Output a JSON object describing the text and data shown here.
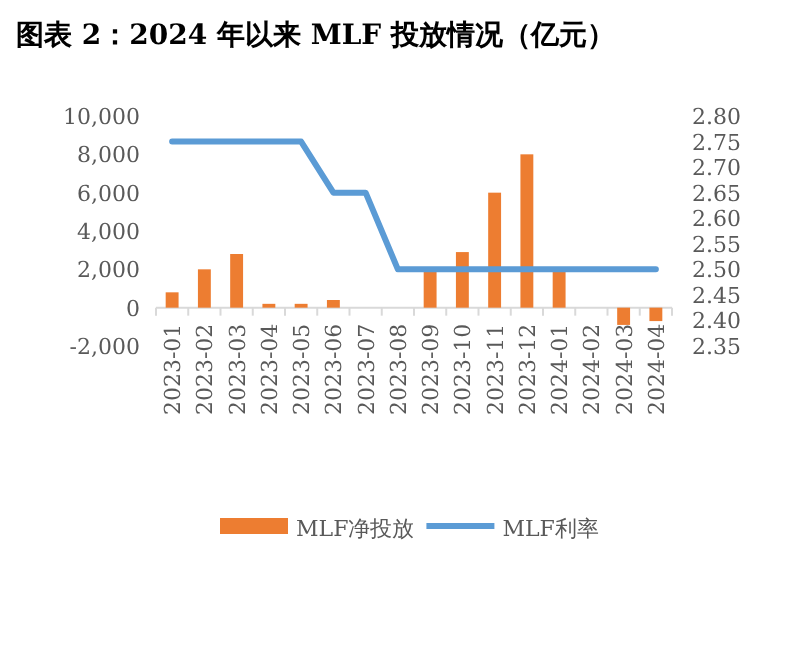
{
  "chart_data": {
    "type": "bar",
    "title": "图表 2：2024 年以来 MLF 投放情况（亿元）",
    "categories": [
      "2023-01",
      "2023-02",
      "2023-03",
      "2023-04",
      "2023-05",
      "2023-06",
      "2023-07",
      "2023-08",
      "2023-09",
      "2023-10",
      "2023-11",
      "2023-12",
      "2024-01",
      "2024-02",
      "2024-03",
      "2024-04"
    ],
    "series": [
      {
        "name": "MLF净投放",
        "color": "#ed7d31",
        "values": [
          800,
          2000,
          2800,
          200,
          200,
          400,
          0,
          0,
          2000,
          2900,
          6000,
          8000,
          2000,
          0,
          -900,
          -700
        ]
      },
      {
        "name": "MLF利率",
        "type": "line",
        "axis": "y2",
        "color": "#5b9bd5",
        "values": [
          2.75,
          2.75,
          2.75,
          2.75,
          2.75,
          2.65,
          2.65,
          2.5,
          2.5,
          2.5,
          2.5,
          2.5,
          2.5,
          2.5,
          2.5,
          2.5
        ]
      }
    ],
    "ylim": [
      -2000,
      10000
    ],
    "yticks": [
      {
        "value": -2000,
        "label": "-2,000"
      },
      0,
      {
        "value": 2000,
        "label": "2,000"
      },
      {
        "value": 4000,
        "label": "4,000"
      },
      {
        "value": 6000,
        "label": "6,000"
      },
      {
        "value": 8000,
        "label": "8,000"
      },
      {
        "value": 10000,
        "label": "10,000"
      }
    ],
    "y2lim": [
      2.35,
      2.8
    ],
    "y2ticks": [
      2.35,
      {
        "value": 2.4,
        "label": "2.40"
      },
      2.45,
      {
        "value": 2.5,
        "label": "2.50"
      },
      2.55,
      {
        "value": 2.6,
        "label": "2.60"
      },
      2.65,
      {
        "value": 2.7,
        "label": "2.70"
      },
      2.75,
      {
        "value": 2.8,
        "label": "2.80"
      }
    ],
    "grid": false,
    "legend": "bottom"
  }
}
